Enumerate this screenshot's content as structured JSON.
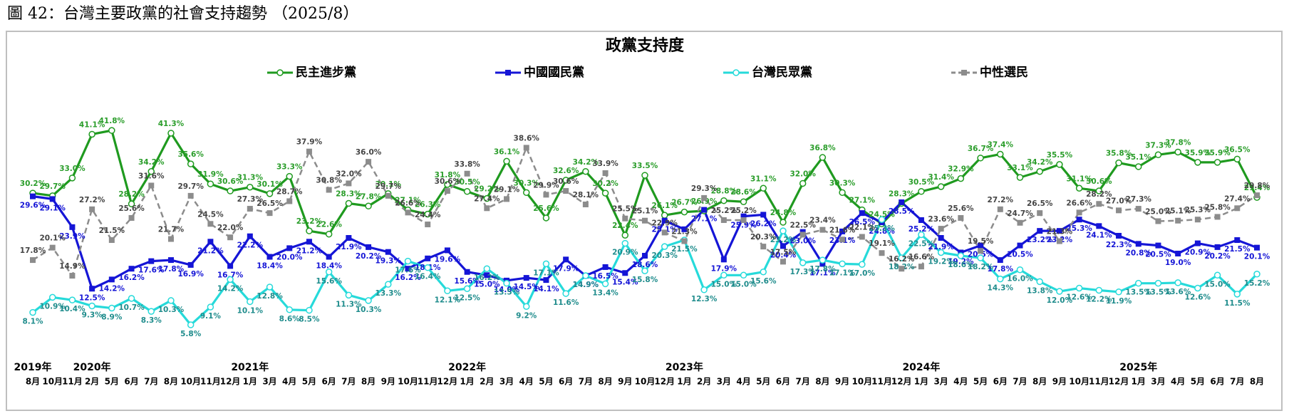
{
  "heading": "圖 42：台灣主要政黨的社會支持趨勢 （2025/8）",
  "chart_data": {
    "type": "line",
    "title": "政黨支持度",
    "ylim": [
      0,
      50
    ],
    "categories": [
      "8月",
      "10月",
      "11月",
      "2月",
      "5月",
      "6月",
      "7月",
      "8月",
      "10月",
      "11月",
      "12月",
      "1月",
      "3月",
      "4月",
      "5月",
      "6月",
      "7月",
      "8月",
      "9月",
      "10月",
      "11月",
      "12月",
      "1月",
      "2月",
      "3月",
      "4月",
      "5月",
      "6月",
      "7月",
      "8月",
      "9月",
      "10月",
      "12月",
      "1月",
      "2月",
      "3月",
      "4月",
      "5月",
      "6月",
      "7月",
      "8月",
      "9月",
      "10月",
      "11月",
      "12月",
      "1月",
      "3月",
      "4月",
      "5月",
      "6月",
      "7月",
      "8月",
      "9月",
      "10月",
      "11月",
      "12月",
      "1月",
      "3月",
      "4月",
      "5月",
      "6月",
      "7月",
      "8月"
    ],
    "years": [
      "2019年",
      null,
      null,
      "2020年",
      null,
      null,
      null,
      null,
      null,
      null,
      null,
      "2021年",
      null,
      null,
      null,
      null,
      null,
      null,
      null,
      null,
      null,
      null,
      "2022年",
      null,
      null,
      null,
      null,
      null,
      null,
      null,
      null,
      null,
      null,
      "2023年",
      null,
      null,
      null,
      null,
      null,
      null,
      null,
      null,
      null,
      null,
      null,
      "2024年",
      null,
      null,
      null,
      null,
      null,
      null,
      null,
      null,
      null,
      null,
      "2025年",
      null,
      null,
      null,
      null,
      null,
      null
    ],
    "series": [
      {
        "name": "民主進步黨",
        "color": "#1f9a1f",
        "label_color": "#2a9d2a",
        "marker": "circle",
        "values": [
          30.2,
          29.7,
          33.0,
          41.1,
          41.8,
          28.2,
          34.2,
          41.3,
          35.6,
          31.9,
          30.6,
          31.3,
          30.1,
          33.3,
          23.2,
          22.6,
          28.3,
          27.8,
          30.1,
          27.1,
          26.3,
          31.8,
          30.5,
          29.2,
          36.1,
          30.3,
          25.6,
          32.6,
          34.2,
          30.2,
          22.4,
          33.5,
          26.1,
          26.7,
          26.9,
          28.8,
          28.6,
          31.1,
          24.8,
          32.0,
          36.8,
          30.3,
          27.1,
          24.5,
          28.3,
          30.5,
          31.4,
          32.9,
          36.7,
          37.4,
          33.1,
          34.2,
          35.5,
          31.1,
          30.6,
          35.8,
          35.1,
          37.3,
          37.8,
          35.9,
          35.9,
          36.5,
          29.4
        ],
        "value_labels": [
          "30.2%",
          "29.7%",
          "33.0%",
          "41.1%",
          "41.8%",
          "28.2%",
          "34.2%",
          "41.3%",
          "35.6%",
          "31.9%",
          "30.6%",
          "31.3%",
          "30.1%",
          "33.3%",
          "23.2%",
          "22.6%",
          "28.3%",
          "27.8%",
          "30.1%",
          "27.1%",
          "26.3%",
          "31.8%",
          "30.5%",
          "29.2%",
          "36.1%",
          "30.3%",
          "25.6%",
          "32.6%",
          "34.2%",
          "30.2%",
          "22.4%",
          "33.5%",
          "26.1%",
          "26.7%",
          "26.9%",
          "28.8%",
          "28.6%",
          "31.1%",
          "24.8%",
          "32.0%",
          "36.8%",
          "30.3%",
          "27.1%",
          "24.5%",
          "28.3%",
          "30.5%",
          "31.4%",
          "32.9%",
          "36.7%",
          "37.4%",
          "33.1%",
          "34.2%",
          "35.5%",
          "31.1%",
          "30.6%",
          "35.8%",
          "35.1%",
          "37.3%",
          "37.8%",
          "35.9%",
          "35.9%",
          "36.5%",
          "29.4%"
        ]
      },
      {
        "name": "中國國民黨",
        "color": "#1515d6",
        "label_color": "#1515d6",
        "marker": "square",
        "values": [
          29.6,
          29.1,
          23.9,
          12.5,
          14.2,
          16.2,
          17.6,
          17.8,
          16.9,
          21.2,
          16.7,
          22.2,
          18.4,
          20.0,
          21.2,
          18.4,
          21.9,
          20.2,
          19.3,
          16.2,
          18.1,
          19.6,
          15.6,
          15.0,
          14.0,
          14.5,
          14.1,
          17.9,
          14.9,
          16.5,
          15.4,
          18.6,
          25.1,
          23.5,
          27.1,
          17.9,
          25.9,
          26.2,
          20.4,
          23.0,
          17.1,
          23.1,
          26.5,
          24.8,
          28.5,
          25.2,
          21.9,
          19.2,
          20.5,
          17.8,
          20.5,
          23.2,
          23.2,
          25.3,
          24.1,
          22.3,
          20.8,
          20.5,
          19.0,
          20.9,
          20.2,
          21.5,
          20.1
        ],
        "value_labels": [
          "29.6%",
          "29.1%",
          "23.9%",
          "12.5%",
          "14.2%",
          "16.2%",
          "17.6%",
          "17.8%",
          "16.9%",
          "21.2%",
          "16.7%",
          "22.2%",
          "18.4%",
          "20.0%",
          "21.2%",
          "18.4%",
          "21.9%",
          "20.2%",
          "19.3%",
          "16.2%",
          "18.1%",
          "19.6%",
          "15.6%",
          "15.0%",
          "14.0%",
          "14.5%",
          "14.1%",
          "17.9%",
          "14.9%",
          "16.5%",
          "15.4%",
          "18.6%",
          "25.1%",
          null,
          "27.1%",
          "17.9%",
          "25.9%",
          "26.2%",
          "20.4%",
          "23.0%",
          "17.1%",
          "23.1%",
          "26.5%",
          "24.8%",
          "28.5%",
          "25.2%",
          "21.9%",
          "19.2%",
          "20.5%",
          "17.8%",
          "20.5%",
          "23.2%",
          "23.2%",
          "25.3%",
          "24.1%",
          "22.3%",
          "20.8%",
          "20.5%",
          "19.0%",
          "20.9%",
          "20.2%",
          "21.5%",
          "20.1%"
        ]
      },
      {
        "name": "台灣民眾黨",
        "color": "#26dada",
        "label_color": "#1f8c8c",
        "marker": "circle",
        "values": [
          8.1,
          10.9,
          10.4,
          9.3,
          8.9,
          10.7,
          8.3,
          10.3,
          5.8,
          9.1,
          14.2,
          10.1,
          12.8,
          8.6,
          8.5,
          15.6,
          11.3,
          10.3,
          13.3,
          17.6,
          16.4,
          12.1,
          12.5,
          16.2,
          13.5,
          9.2,
          17.1,
          11.6,
          14.9,
          13.4,
          20.9,
          15.8,
          20.3,
          21.5,
          12.3,
          15.0,
          15.0,
          15.6,
          23.2,
          17.3,
          17.8,
          17.1,
          17.0,
          25.3,
          18.2,
          22.5,
          19.2,
          18.6,
          18.2,
          14.3,
          16.0,
          13.8,
          12.0,
          12.6,
          12.2,
          11.9,
          13.5,
          13.5,
          13.6,
          12.6,
          15.0,
          11.5,
          15.2
        ],
        "value_labels": [
          "8.1%",
          "10.9%",
          "10.4%",
          "9.3%",
          "8.9%",
          "10.7%",
          "8.3%",
          "10.3%",
          "5.8%",
          "9.1%",
          "14.2%",
          "10.1%",
          "12.8%",
          "8.6%",
          "8.5%",
          "15.6%",
          "11.3%",
          "10.3%",
          "13.3%",
          "17.6%",
          "16.4%",
          "12.1%",
          "12.5%",
          "16.2%",
          "13.5%",
          "9.2%",
          "17.1%",
          "11.6%",
          "14.9%",
          "13.4%",
          "20.9%",
          "15.8%",
          "20.3%",
          "21.5%",
          "12.3%",
          "15.0%",
          "15.0%",
          "15.6%",
          "23.2%",
          "17.3%",
          "17.8%",
          "17.1%",
          "17.0%",
          "25.3%",
          "18.2%",
          "22.5%",
          "19.2%",
          "18.6%",
          "18.2%",
          "14.3%",
          "16.0%",
          "13.8%",
          "12.0%",
          "12.6%",
          "12.2%",
          "11.9%",
          "13.5%",
          "13.5%",
          "13.6%",
          "12.6%",
          "15.0%",
          "11.5%",
          "15.2%"
        ]
      },
      {
        "name": "中性選民",
        "color": "#8c8c8c",
        "label_color": "#444444",
        "marker": "square",
        "dashed": true,
        "values": [
          17.8,
          20.1,
          14.9,
          27.2,
          21.5,
          25.6,
          31.6,
          21.7,
          29.7,
          24.5,
          22.0,
          27.3,
          26.5,
          28.7,
          37.9,
          30.8,
          32.0,
          36.0,
          29.7,
          26.6,
          24.4,
          30.6,
          33.8,
          27.4,
          29.1,
          38.6,
          29.9,
          30.6,
          28.1,
          33.9,
          25.5,
          25.1,
          22.9,
          21.3,
          29.3,
          25.2,
          25.2,
          20.3,
          17.5,
          22.5,
          23.4,
          21.6,
          22.1,
          19.1,
          16.2,
          16.6,
          23.6,
          25.6,
          19.5,
          27.2,
          24.7,
          26.5,
          21.3,
          26.6,
          28.2,
          27.0,
          27.3,
          25.0,
          25.1,
          25.3,
          25.8,
          27.4,
          29.8
        ],
        "value_labels": [
          "17.8%",
          "20.1%",
          "14.9%",
          "27.2%",
          "21.5%",
          "25.6%",
          "31.6%",
          "21.7%",
          "29.7%",
          "24.5%",
          "22.0%",
          "27.3%",
          "26.5%",
          "28.7%",
          "37.9%",
          "30.8%",
          "32.0%",
          "36.0%",
          "29.7%",
          "26.6%",
          "24.4%",
          "30.6%",
          "33.8%",
          "27.4%",
          "29.1%",
          "38.6%",
          "29.9%",
          "30.6%",
          "28.1%",
          "33.9%",
          "25.5%",
          "25.1%",
          "22.9%",
          "21.3%",
          "29.3%",
          "25.2%",
          "25.2%",
          "20.3%",
          "17.5%",
          "22.5%",
          "23.4%",
          "21.6%",
          "22.1%",
          "19.1%",
          "16.2%",
          "16.6%",
          "23.6%",
          "25.6%",
          "19.5%",
          "27.2%",
          "24.7%",
          "26.5%",
          "21.3%",
          "26.6%",
          "28.2%",
          "27.0%",
          "27.3%",
          "25.0%",
          "25.1%",
          "25.3%",
          "25.8%",
          "27.4%",
          "29.8%"
        ]
      }
    ]
  }
}
